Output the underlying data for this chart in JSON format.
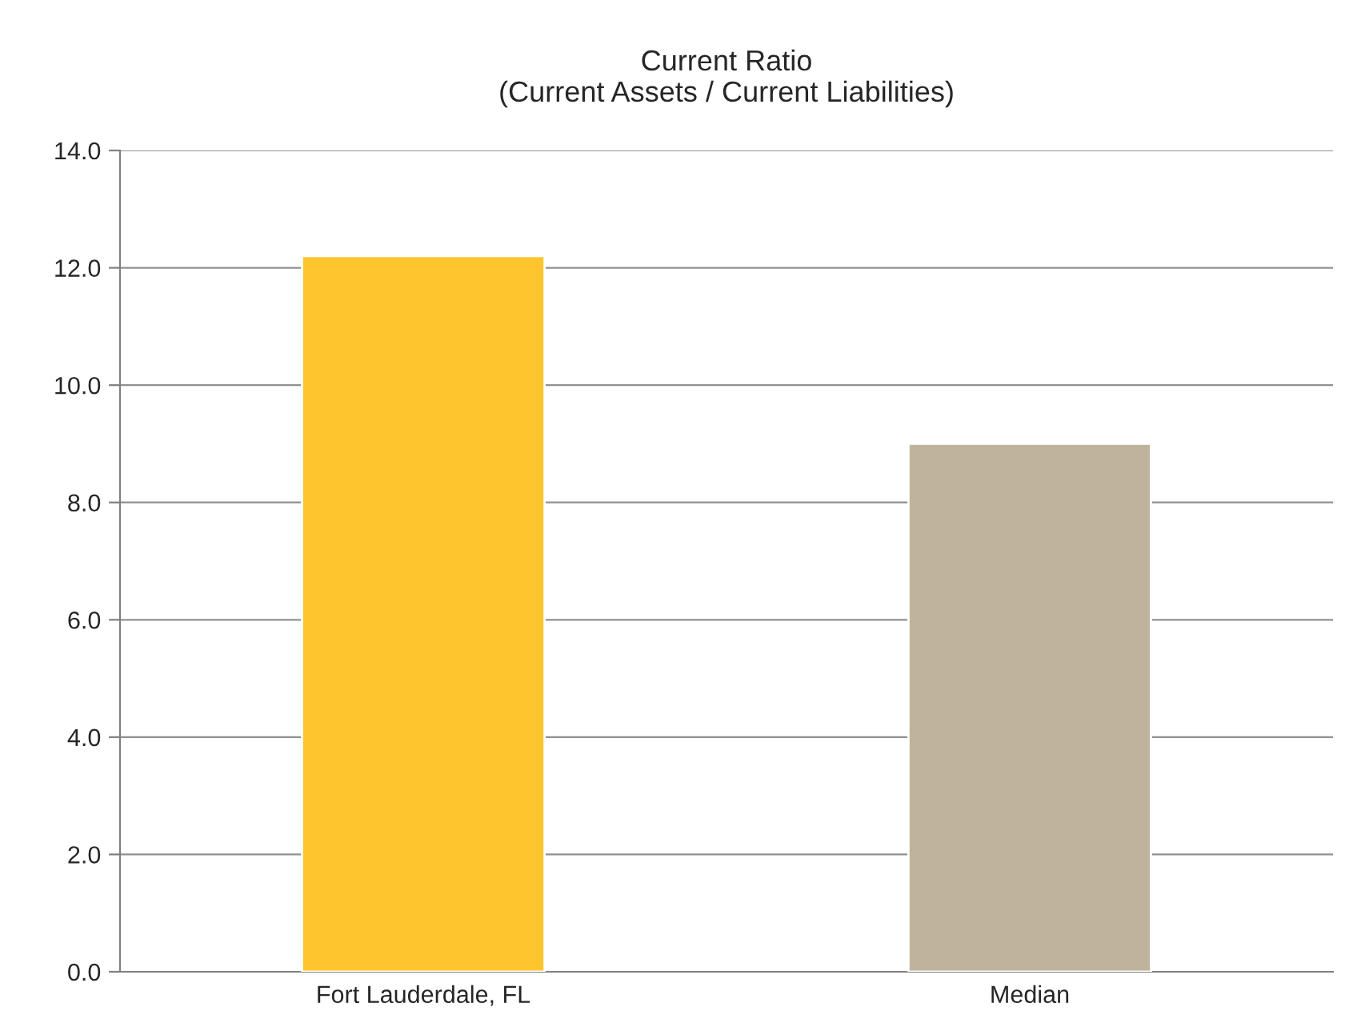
{
  "chart_data": {
    "type": "bar",
    "title": "Current Ratio\n(Current Assets / Current Liabilities)",
    "categories": [
      "Fort Lauderdale, FL",
      "Median"
    ],
    "values": [
      12.2,
      9.0
    ],
    "colors": [
      "#ffc52f",
      "#bfb39b"
    ],
    "ylim": [
      0,
      14
    ],
    "yticks": [
      {
        "value": 0,
        "label": "0.0"
      },
      {
        "value": 2,
        "label": "2.0"
      },
      {
        "value": 4,
        "label": "4.0"
      },
      {
        "value": 6,
        "label": "6.0"
      },
      {
        "value": 8,
        "label": "8.0"
      },
      {
        "value": 10,
        "label": "10.0"
      },
      {
        "value": 12,
        "label": "12.0"
      },
      {
        "value": 14,
        "label": "14.0"
      }
    ],
    "grid": "y"
  }
}
